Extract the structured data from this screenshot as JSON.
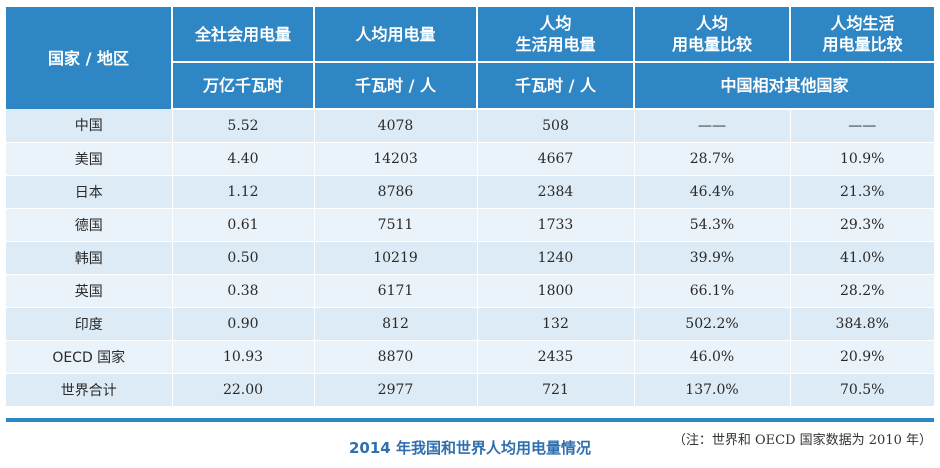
{
  "table": {
    "headers_row1": [
      "国家 / 地区",
      "全社会用电量",
      "人均用电量",
      "人均\n生活用电量",
      "人均\n用电量比较",
      "人均生活\n用电量比较"
    ],
    "headers_row2": [
      "万亿千瓦时",
      "千瓦时 / 人",
      "千瓦时 / 人",
      "中国相对其他国家"
    ],
    "rows": [
      {
        "region": "中国",
        "total": "5.52",
        "per_capita": "4078",
        "residential": "508",
        "ratio_per_capita": "——",
        "ratio_residential": "——"
      },
      {
        "region": "美国",
        "total": "4.40",
        "per_capita": "14203",
        "residential": "4667",
        "ratio_per_capita": "28.7%",
        "ratio_residential": "10.9%"
      },
      {
        "region": "日本",
        "total": "1.12",
        "per_capita": "8786",
        "residential": "2384",
        "ratio_per_capita": "46.4%",
        "ratio_residential": "21.3%"
      },
      {
        "region": "德国",
        "total": "0.61",
        "per_capita": "7511",
        "residential": "1733",
        "ratio_per_capita": "54.3%",
        "ratio_residential": "29.3%"
      },
      {
        "region": "韩国",
        "total": "0.50",
        "per_capita": "10219",
        "residential": "1240",
        "ratio_per_capita": "39.9%",
        "ratio_residential": "41.0%"
      },
      {
        "region": "英国",
        "total": "0.38",
        "per_capita": "6171",
        "residential": "1800",
        "ratio_per_capita": "66.1%",
        "ratio_residential": "28.2%"
      },
      {
        "region": "印度",
        "total": "0.90",
        "per_capita": "812",
        "residential": "132",
        "ratio_per_capita": "502.2%",
        "ratio_residential": "384.8%"
      },
      {
        "region": "OECD 国家",
        "total": "10.93",
        "per_capita": "8870",
        "residential": "2435",
        "ratio_per_capita": "46.0%",
        "ratio_residential": "20.9%"
      },
      {
        "region": "世界合计",
        "total": "22.00",
        "per_capita": "2977",
        "residential": "721",
        "ratio_per_capita": "137.0%",
        "ratio_residential": "70.5%"
      }
    ]
  },
  "caption": "2014 年我国和世界人均用电量情况",
  "note": "（注：世界和 OECD 国家数据为 2010 年）",
  "colors": {
    "header_bg": "#2f86c4",
    "row_bg": "#dcebf6",
    "caption": "#2f6fb0"
  }
}
